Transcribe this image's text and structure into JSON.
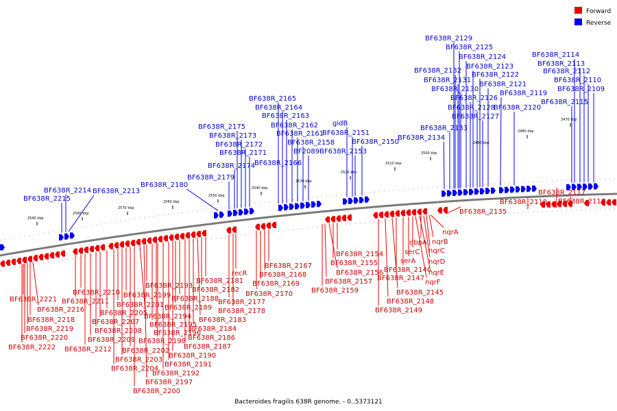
{
  "caption": "Bacteroides fragilis 638R genome. - 0..5373121",
  "legend": [
    {
      "label": "Forward",
      "color": "#ee0000"
    },
    {
      "label": "Reverse",
      "color": "#0000ee"
    }
  ],
  "colors": {
    "forward": "#ee0000",
    "reverse": "#0000ee",
    "backbone": "#7a7a7a"
  },
  "scale_ticks": [
    "2590 kbp",
    "2580 kbp",
    "2570 kbp",
    "2560 kbp",
    "2550 kbp",
    "2540 kbp",
    "2530 kbp",
    "2520 kbp",
    "2510 kbp",
    "2500 kbp",
    "2490 kbp",
    "2480 kbp",
    "2470 kbp"
  ],
  "forward_genes": [
    "BF638R_2221",
    "BF638R_2216",
    "BF638R_2218",
    "BF638R_2219",
    "BF638R_2220",
    "BF638R_2222",
    "BF638R_2210",
    "BF638R_2211",
    "BF638R_2212",
    "BF638R_2209",
    "BF638R_2208",
    "BF638R_2207",
    "BF638R_2205",
    "BF638R_2201",
    "BF638R_2199",
    "BF638R_2204",
    "BF638R_2203",
    "BF638R_2202",
    "BF638R_2200",
    "BF638R_2197",
    "BF638R_2194",
    "BF638R_2193",
    "BF638R_2195",
    "BF638R_2196",
    "BF638R_2198",
    "BF638R_2192",
    "BF638R_2191",
    "BF638R_2190",
    "BF638R_2189",
    "BF638R_2188",
    "BF638R_2187",
    "BF638R_2186",
    "BF638R_2184",
    "BF638R_2183",
    "BF638R_2182",
    "BF638R_2181",
    "BF638R_2177",
    "BF638R_2178",
    "recR",
    "BF638R_2167",
    "BF638R_2168",
    "BF638R_2169",
    "BF638R_2170",
    "BF638R_2154",
    "BF638R_2155",
    "BF638R_2156",
    "BF638R_2157",
    "BF638R_2159",
    "dbpA",
    "serC",
    "serA",
    "BF638R_2146",
    "BF638R_2147",
    "BF638R_2145",
    "BF638R_2148",
    "BF638R_2149",
    "nqrA",
    "nqrB",
    "nqrC",
    "nqrD",
    "nqrE",
    "nqrF",
    "BF638R_2135",
    "BF638R_2118",
    "BF638R_2117",
    "BF638R_2116"
  ],
  "reverse_genes": [
    "BF638R_2214",
    "BF638R_2215",
    "BF638R_2213",
    "BF638R_2180",
    "BF638R_2179",
    "BF638R_2174",
    "BF638R_2175",
    "BF638R_2173",
    "BF638R_2172",
    "BF638R_2171",
    "BF638R_2165",
    "BF638R_2164",
    "BF638R_2163",
    "BF638R_2162",
    "BF638R_2161",
    "BF638R_2158",
    "BF2089",
    "BF638R_2166",
    "gidB",
    "BF638R_2151",
    "BF638R_2153",
    "BF638R_2150",
    "BF638R_2133",
    "BF638R_2134",
    "BF638R_2129",
    "BF638R_2125",
    "BF638R_2124",
    "BF638R_2132",
    "BF638R_2123",
    "BF638R_2131",
    "BF638R_2122",
    "BF638R_2130",
    "BF638R_2121",
    "BF638R_2126",
    "BF638R_2119",
    "BF638R_2128",
    "BF638R_2120",
    "BF638R_2127",
    "BF638R_2114",
    "BF638R_2113",
    "BF638R_2112",
    "BF638R_2110",
    "BF638R_2109",
    "BF638R_2115"
  ]
}
